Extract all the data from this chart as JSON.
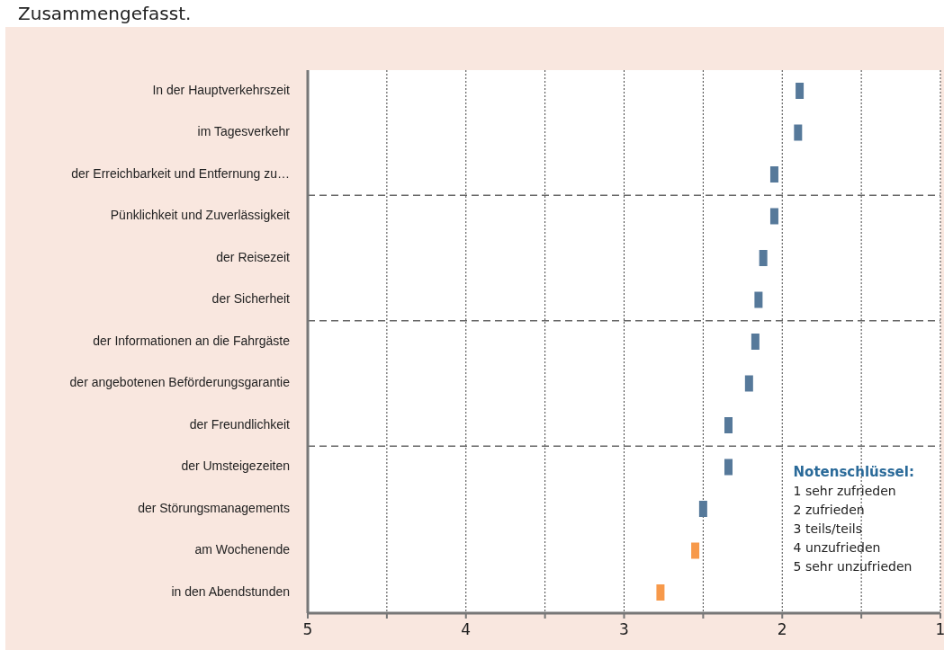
{
  "chart_data": {
    "type": "scatter",
    "orientation": "horizontal",
    "title": "Zusammengefasst.",
    "categories": [
      "In der Hauptverkehrszeit",
      "im Tagesverkehr",
      "der Erreichbarkeit und Entfernung zu…",
      "Pünklichkeit und Zuverlässigkeit",
      "der Reisezeit",
      "der Sicherheit",
      "der Informationen an die Fahrgäste",
      "der angebotenen Beförderungsgarantie",
      "der Freundlichkeit",
      "der Umsteigezeiten",
      "der Störungsmanagements",
      "am Wochenende",
      "in den Abendstunden"
    ],
    "values": [
      1.89,
      1.9,
      2.05,
      2.05,
      2.12,
      2.15,
      2.17,
      2.21,
      2.34,
      2.34,
      2.5,
      2.55,
      2.77
    ],
    "colors": [
      "#56799a",
      "#56799a",
      "#56799a",
      "#56799a",
      "#56799a",
      "#56799a",
      "#56799a",
      "#56799a",
      "#56799a",
      "#56799a",
      "#56799a",
      "#f7994a",
      "#f7994a"
    ],
    "xlim": [
      5,
      1
    ],
    "xticks": [
      5,
      {
        "value": 4.5,
        "label": null
      },
      4,
      {
        "value": 3.5,
        "label": null
      },
      3,
      {
        "value": 2.5,
        "label": null
      },
      2,
      {
        "value": 1.5,
        "label": null
      },
      1
    ],
    "grid": "x",
    "annotations": [
      "Notenschlüssel:",
      "1 sehr zufrieden",
      "2 zufrieden",
      "3 teils/teils",
      "4 unzufrieden",
      "5 sehr unzufrieden"
    ]
  }
}
